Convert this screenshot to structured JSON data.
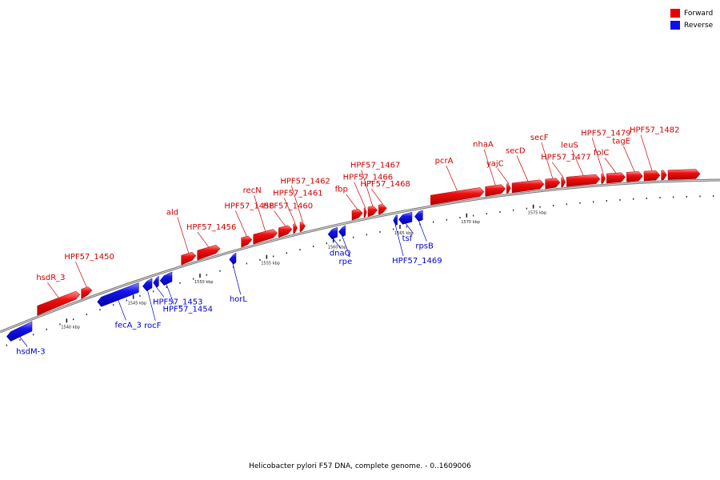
{
  "legend": [
    {
      "label": "Forward",
      "color": "#ee0000"
    },
    {
      "label": "Reverse",
      "color": "#1010ee"
    }
  ],
  "caption": "Helicobacter pylori F57 DNA, complete genome. - 0..1609006",
  "colors": {
    "forward": "#ee0000",
    "reverse": "#1010ee",
    "backbone": "#888888"
  },
  "scale": {
    "unit": "kbp",
    "labels": [
      {
        "text": "1540 kbp",
        "kbp": 1540
      },
      {
        "text": "1545 kbp",
        "kbp": 1545
      },
      {
        "text": "1550 kbp",
        "kbp": 1550
      },
      {
        "text": "1555 kbp",
        "kbp": 1555
      },
      {
        "text": "1560 kbp",
        "kbp": 1560
      },
      {
        "text": "1565 kbp",
        "kbp": 1565
      },
      {
        "text": "1570 kbp",
        "kbp": 1570
      },
      {
        "text": "1575 kbp",
        "kbp": 1575
      }
    ]
  },
  "genes": [
    {
      "name": "hsdM-3",
      "strand": "reverse",
      "start": 1535.5,
      "end": 1537.4
    },
    {
      "name": "hsdR_3",
      "strand": "forward",
      "start": 1537.8,
      "end": 1541.0
    },
    {
      "name": "HPF57_1450",
      "strand": "forward",
      "start": 1541.1,
      "end": 1541.9
    },
    {
      "name": "fecA_3",
      "strand": "reverse",
      "start": 1542.3,
      "end": 1545.4
    },
    {
      "name": "rocF",
      "strand": "reverse",
      "start": 1545.7,
      "end": 1546.4
    },
    {
      "name": "HPF57_1453",
      "strand": "reverse",
      "start": 1546.5,
      "end": 1546.9
    },
    {
      "name": "HPF57_1454",
      "strand": "reverse",
      "start": 1547.0,
      "end": 1547.9
    },
    {
      "name": "ald",
      "strand": "forward",
      "start": 1548.6,
      "end": 1549.7
    },
    {
      "name": "HPF57_1456",
      "strand": "forward",
      "start": 1549.8,
      "end": 1551.5
    },
    {
      "name": "horL",
      "strand": "reverse",
      "start": 1552.2,
      "end": 1552.7
    },
    {
      "name": "HPF57_1458",
      "strand": "forward",
      "start": 1553.1,
      "end": 1553.9
    },
    {
      "name": "recN",
      "strand": "forward",
      "start": 1554.0,
      "end": 1555.8
    },
    {
      "name": "HPF57_1460",
      "strand": "forward",
      "start": 1555.9,
      "end": 1556.9
    },
    {
      "name": "HPF57_1461",
      "strand": "forward",
      "start": 1557.0,
      "end": 1557.3
    },
    {
      "name": "HPF57_1462",
      "strand": "forward",
      "start": 1557.5,
      "end": 1557.9
    },
    {
      "name": "dnaQ",
      "strand": "reverse",
      "start": 1559.6,
      "end": 1560.3
    },
    {
      "name": "rpe",
      "strand": "reverse",
      "start": 1560.4,
      "end": 1560.9
    },
    {
      "name": "fbp",
      "strand": "forward",
      "start": 1561.4,
      "end": 1562.2
    },
    {
      "name": "HPF57_1466",
      "strand": "forward",
      "start": 1562.3,
      "end": 1562.5
    },
    {
      "name": "HPF57_1467",
      "strand": "forward",
      "start": 1562.6,
      "end": 1563.3
    },
    {
      "name": "HPF57_1468",
      "strand": "forward",
      "start": 1563.4,
      "end": 1564.0
    },
    {
      "name": "HPF57_1469",
      "strand": "reverse",
      "start": 1564.5,
      "end": 1564.8
    },
    {
      "name": "tsf",
      "strand": "reverse",
      "start": 1564.9,
      "end": 1565.9
    },
    {
      "name": "rpsB",
      "strand": "reverse",
      "start": 1566.1,
      "end": 1566.7
    },
    {
      "name": "pcrA",
      "strand": "forward",
      "start": 1567.3,
      "end": 1571.3
    },
    {
      "name": "nhaA",
      "strand": "forward",
      "start": 1571.4,
      "end": 1572.9
    },
    {
      "name": "yajC",
      "strand": "forward",
      "start": 1573.0,
      "end": 1573.3
    },
    {
      "name": "secD",
      "strand": "forward",
      "start": 1573.4,
      "end": 1575.8
    },
    {
      "name": "secF",
      "strand": "forward",
      "start": 1575.9,
      "end": 1577.0
    },
    {
      "name": "HPF57_1477",
      "strand": "forward",
      "start": 1577.1,
      "end": 1577.4
    },
    {
      "name": "leuS",
      "strand": "forward",
      "start": 1577.5,
      "end": 1580.0
    },
    {
      "name": "HPF57_1479",
      "strand": "forward",
      "start": 1580.1,
      "end": 1580.4
    },
    {
      "name": "folC",
      "strand": "forward",
      "start": 1580.5,
      "end": 1581.9
    },
    {
      "name": "tagE",
      "strand": "forward",
      "start": 1582.0,
      "end": 1583.2
    },
    {
      "name": "HPF57_1482",
      "strand": "forward",
      "start": 1583.3,
      "end": 1584.5
    },
    {
      "name": "",
      "strand": "forward",
      "start": 1584.6,
      "end": 1585.0
    },
    {
      "name": "",
      "strand": "forward",
      "start": 1585.1,
      "end": 1587.5
    }
  ]
}
